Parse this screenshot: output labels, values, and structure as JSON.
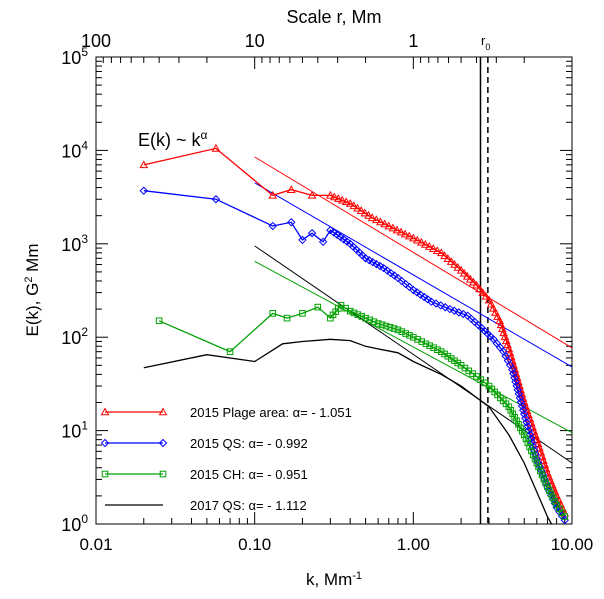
{
  "chart_data": {
    "type": "line",
    "title": "",
    "xlabel": "k, Mm",
    "xlabel_sup": "-1",
    "ylabel_pre": "E(k), G",
    "ylabel_sup": "2",
    "ylabel_post": " Mm",
    "top_axis_label": "Scale r,  Mm",
    "x_scale": "log",
    "y_scale": "log",
    "xlim": [
      0.01,
      10
    ],
    "ylim": [
      1,
      100000
    ],
    "x_ticks": [
      {
        "v": 0.01,
        "label": "0.01"
      },
      {
        "v": 0.1,
        "label": "0.10"
      },
      {
        "v": 1,
        "label": "1.00"
      },
      {
        "v": 10,
        "label": "10.00"
      }
    ],
    "y_ticks": [
      {
        "v": 1,
        "base": "10",
        "exp": "0"
      },
      {
        "v": 10,
        "base": "10",
        "exp": "1"
      },
      {
        "v": 100,
        "base": "10",
        "exp": "2"
      },
      {
        "v": 1000,
        "base": "10",
        "exp": "3"
      },
      {
        "v": 10000,
        "base": "10",
        "exp": "4"
      },
      {
        "v": 100000,
        "base": "10",
        "exp": "5"
      }
    ],
    "top_ticks": [
      {
        "r": 100,
        "label": "100"
      },
      {
        "r": 10,
        "label": "10"
      },
      {
        "r": 1,
        "label": "1"
      }
    ],
    "annotation": {
      "pre": "E(k) ~ k",
      "sup": "α"
    },
    "r0_label": {
      "base": "r",
      "sub": "0"
    },
    "r0_lines": [
      {
        "k": 2.65,
        "style": "solid"
      },
      {
        "k": 2.95,
        "style": "dashed"
      }
    ],
    "legend_position": "bottom-left",
    "series": [
      {
        "name": "2015 Plage area:  α= - 1.051",
        "color": "#ff0000",
        "marker": "triangle",
        "fit": {
          "k": [
            0.1,
            10
          ],
          "E": [
            8500,
            77
          ]
        },
        "x": [
          0.02,
          0.057,
          0.13,
          0.17,
          0.23,
          0.3,
          0.4,
          0.55,
          0.7,
          1.0,
          1.5,
          2.0,
          2.5,
          3.0,
          3.5,
          4.0,
          5.0,
          6.0,
          7.0,
          8.0,
          9.0
        ],
        "y": [
          7000,
          10500,
          3300,
          3800,
          3300,
          3300,
          2700,
          1900,
          1550,
          1150,
          800,
          520,
          360,
          250,
          150,
          75,
          20,
          8,
          3.5,
          2,
          1.3
        ]
      },
      {
        "name": "2015 QS:  α= - 0.992",
        "color": "#0000ff",
        "marker": "diamond",
        "fit": {
          "k": [
            0.1,
            10
          ],
          "E": [
            4500,
            48
          ]
        },
        "x": [
          0.02,
          0.057,
          0.13,
          0.17,
          0.2,
          0.23,
          0.27,
          0.3,
          0.4,
          0.5,
          0.65,
          0.8,
          1.0,
          1.3,
          1.7,
          2.2,
          2.7,
          3.2,
          3.7,
          4.2,
          5.0,
          6.0,
          7.0,
          8.0,
          9.0
        ],
        "y": [
          3700,
          3000,
          1550,
          1700,
          1100,
          1300,
          1050,
          1400,
          1000,
          700,
          550,
          430,
          320,
          240,
          200,
          170,
          125,
          95,
          70,
          45,
          15,
          5,
          2.5,
          1.5,
          1.1
        ]
      },
      {
        "name": "2015 CH:     α= - 0.951",
        "color": "#00a000",
        "marker": "square",
        "fit": {
          "k": [
            0.1,
            10
          ],
          "E": [
            650,
            9.5
          ]
        },
        "x": [
          0.025,
          0.07,
          0.13,
          0.16,
          0.2,
          0.25,
          0.3,
          0.35,
          0.4,
          0.5,
          0.6,
          0.8,
          1.0,
          1.2,
          1.5,
          2.0,
          2.5,
          3.0,
          4.0,
          5.0,
          6.0,
          7.0,
          8.0,
          9.0
        ],
        "y": [
          150,
          70,
          180,
          160,
          180,
          210,
          160,
          220,
          190,
          160,
          140,
          120,
          100,
          85,
          70,
          50,
          38,
          30,
          18,
          9,
          4.5,
          2.5,
          1.6,
          1.2
        ]
      },
      {
        "name": "2017 QS:     α= - 1.112",
        "color": "#000000",
        "marker": "none",
        "fit": {
          "k": [
            0.1,
            10
          ],
          "E": [
            950,
            4.5
          ]
        },
        "x": [
          0.02,
          0.05,
          0.1,
          0.15,
          0.2,
          0.3,
          0.4,
          0.5,
          0.6,
          0.8,
          1.0,
          1.5,
          2.0,
          3.0,
          4.0,
          5.0,
          6.0,
          7.0,
          8.0,
          9.0
        ],
        "y": [
          47,
          65,
          55,
          85,
          90,
          95,
          92,
          80,
          75,
          68,
          55,
          40,
          30,
          18,
          9,
          4.5,
          2.2,
          1.2,
          0.8,
          0.5
        ]
      }
    ]
  }
}
